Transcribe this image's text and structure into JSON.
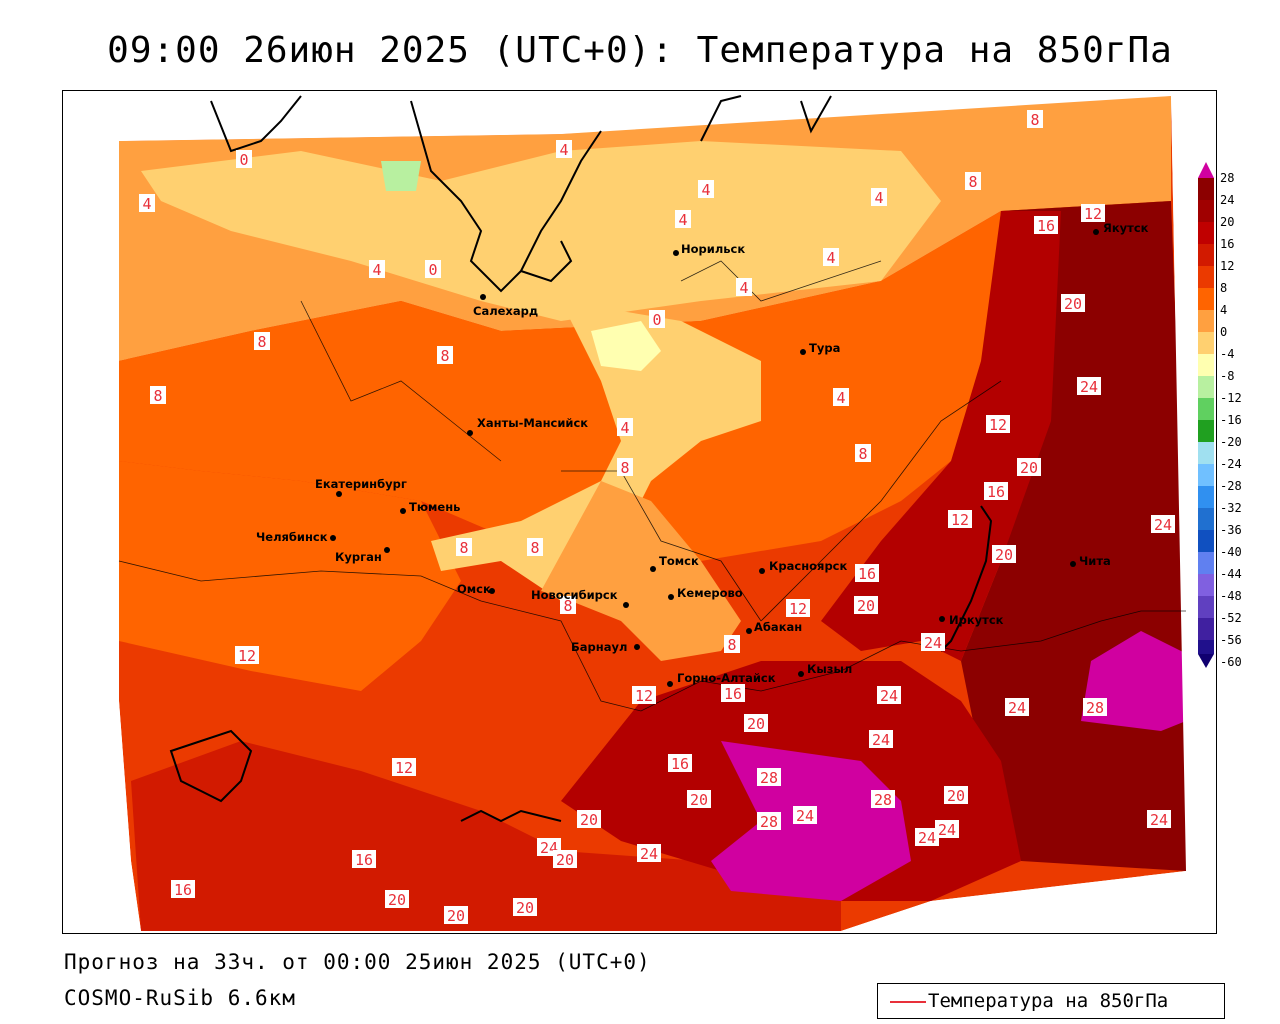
{
  "title": "09:00 26июн 2025 (UTC+0): Температура на 850гПа",
  "footer": {
    "forecast_line": "Прогноз на 33ч. от 00:00 25июн 2025 (UTC+0)",
    "model_line": "COSMO-RuSib 6.6км"
  },
  "legend": {
    "label": "Температура на 850гПа",
    "color": "#e8303a"
  },
  "colorbar": {
    "ticks": [
      "28",
      "24",
      "20",
      "16",
      "12",
      "8",
      "4",
      "0",
      "-4",
      "-8",
      "-12",
      "-16",
      "-20",
      "-24",
      "-28",
      "-32",
      "-36",
      "-40",
      "-44",
      "-48",
      "-52",
      "-56",
      "-60"
    ],
    "colors": {
      "28": "#d000a0",
      "24": "#8c0000",
      "20": "#b30000",
      "16": "#d21a00",
      "12": "#eb3a00",
      "8": "#ff6400",
      "4": "#ffa040",
      "0": "#ffd070",
      "-4": "#ffffb0",
      "-8": "#b8f0a0",
      "-12": "#60d060",
      "-16": "#20a020",
      "-20": "#a0e0f0",
      "-24": "#70c0ff",
      "-28": "#3090f0",
      "-32": "#2070d0",
      "-36": "#1050c0",
      "-40": "#6080f0",
      "-44": "#8060e0",
      "-48": "#6040c0",
      "-52": "#4020a0",
      "-56": "#20108c",
      "-60": "#100070"
    }
  },
  "cities": [
    {
      "name": "Якутск"
    },
    {
      "name": "Норильск"
    },
    {
      "name": "Салехард"
    },
    {
      "name": "Тура"
    },
    {
      "name": "Ханты-Мансийск"
    },
    {
      "name": "Екатеринбург"
    },
    {
      "name": "Тюмень"
    },
    {
      "name": "Челябинск"
    },
    {
      "name": "Курган"
    },
    {
      "name": "Омск"
    },
    {
      "name": "Томск"
    },
    {
      "name": "Красноярск"
    },
    {
      "name": "Новосибирск"
    },
    {
      "name": "Кемерово"
    },
    {
      "name": "Абакан"
    },
    {
      "name": "Барнаул"
    },
    {
      "name": "Иркутск"
    },
    {
      "name": "Чита"
    },
    {
      "name": "Кызыл"
    },
    {
      "name": "Горно-Алтайск"
    }
  ],
  "isotherm_labels": [
    "0",
    "4",
    "8",
    "12",
    "16",
    "20",
    "24",
    "28"
  ]
}
